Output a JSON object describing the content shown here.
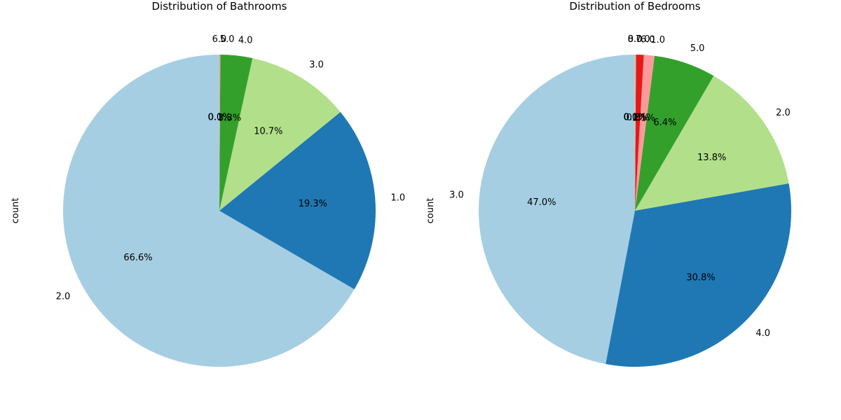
{
  "chart_data": [
    {
      "type": "pie",
      "title": "Distribution of Bathrooms",
      "ylabel": "count",
      "start_angle_deg": 90,
      "direction": "counterclockwise",
      "slices": [
        {
          "label": "2.0",
          "percent": 66.6,
          "pct_text": "66.6%",
          "color": "#a6cee3"
        },
        {
          "label": "1.0",
          "percent": 19.3,
          "pct_text": "19.3%",
          "color": "#1f78b4"
        },
        {
          "label": "3.0",
          "percent": 10.7,
          "pct_text": "10.7%",
          "color": "#b2df8a"
        },
        {
          "label": "4.0",
          "percent": 3.3,
          "pct_text": "3.3%",
          "color": "#33a02c"
        },
        {
          "label": "5.0",
          "percent": 0.1,
          "pct_text": "0.1%",
          "color": "#fb9a99"
        },
        {
          "label": "6.0",
          "percent": 0.0,
          "pct_text": "0.0%",
          "color": "#e31a1c"
        }
      ]
    },
    {
      "type": "pie",
      "title": "Distribution of Bedrooms",
      "ylabel": "count",
      "start_angle_deg": 90,
      "direction": "counterclockwise",
      "slices": [
        {
          "label": "3.0",
          "percent": 47.0,
          "pct_text": "47.0%",
          "color": "#a6cee3"
        },
        {
          "label": "4.0",
          "percent": 30.8,
          "pct_text": "30.8%",
          "color": "#1f78b4"
        },
        {
          "label": "2.0",
          "percent": 13.8,
          "pct_text": "13.8%",
          "color": "#b2df8a"
        },
        {
          "label": "5.0",
          "percent": 6.4,
          "pct_text": "6.4%",
          "color": "#33a02c"
        },
        {
          "label": "1.0",
          "percent": 1.1,
          "pct_text": "1.1%",
          "color": "#fb9a99"
        },
        {
          "label": "6.0",
          "percent": 0.8,
          "pct_text": "0.8%",
          "color": "#e31a1c"
        },
        {
          "label": "7.0",
          "percent": 0.1,
          "pct_text": "0.1%",
          "color": "#fdbf6f"
        },
        {
          "label": "8.0",
          "percent": 0.0,
          "pct_text": "0.0%",
          "color": "#ff7f00"
        },
        {
          "label": "0.0",
          "percent": 0.0,
          "pct_text": "0.0%",
          "color": "#cab2d6"
        }
      ]
    }
  ]
}
